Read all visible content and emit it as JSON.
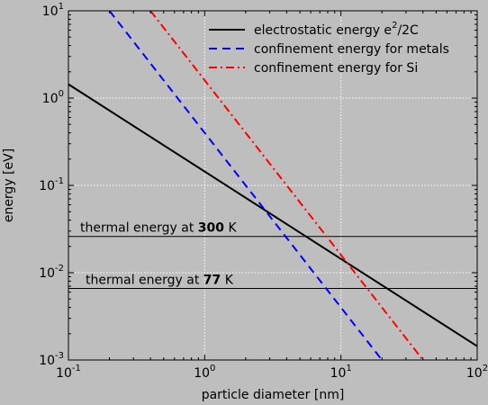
{
  "chart_data": {
    "type": "line",
    "title": "",
    "xlabel": "particle diameter [nm]",
    "ylabel": "energy [eV]",
    "xscale": "log",
    "yscale": "log",
    "xlim": [
      0.1,
      100
    ],
    "ylim": [
      0.001,
      10
    ],
    "grid": true,
    "legend_position": "top-right",
    "x_ticks": [
      {
        "base": "10",
        "exp": "-1",
        "value": 0.1
      },
      {
        "base": "10",
        "exp": "0",
        "value": 1
      },
      {
        "base": "10",
        "exp": "1",
        "value": 10
      },
      {
        "base": "10",
        "exp": "2",
        "value": 100
      }
    ],
    "y_ticks": [
      {
        "base": "10",
        "exp": "-3",
        "value": 0.001
      },
      {
        "base": "10",
        "exp": "-2",
        "value": 0.01
      },
      {
        "base": "10",
        "exp": "-1",
        "value": 0.1
      },
      {
        "base": "10",
        "exp": "0",
        "value": 1
      },
      {
        "base": "10",
        "exp": "1",
        "value": 10
      }
    ],
    "series": [
      {
        "key": "electrostatic",
        "name_main": "electrostatic energy e",
        "name_sup": "2",
        "name_tail": "/2C",
        "color": "#000000",
        "dash": "solid",
        "x": [
          0.1,
          100
        ],
        "y": [
          1.44,
          0.00144
        ]
      },
      {
        "key": "metals",
        "name_main": "confinement energy for metals",
        "color": "#0000ff",
        "dash": "dashed",
        "x": [
          0.2,
          20
        ],
        "y": [
          10,
          0.001
        ]
      },
      {
        "key": "si",
        "name_main": "confinement energy for Si",
        "color": "#ff0000",
        "dash": "dashdot",
        "x": [
          0.4,
          40
        ],
        "y": [
          10,
          0.001
        ]
      }
    ],
    "annotations": [
      {
        "key": "t300",
        "text_pre": "thermal energy at ",
        "text_bold": "300",
        "text_post": " K",
        "y": 0.026
      },
      {
        "key": "t77",
        "text_pre": "thermal energy at ",
        "text_bold": "77",
        "text_post": " K",
        "y": 0.0066
      }
    ]
  }
}
